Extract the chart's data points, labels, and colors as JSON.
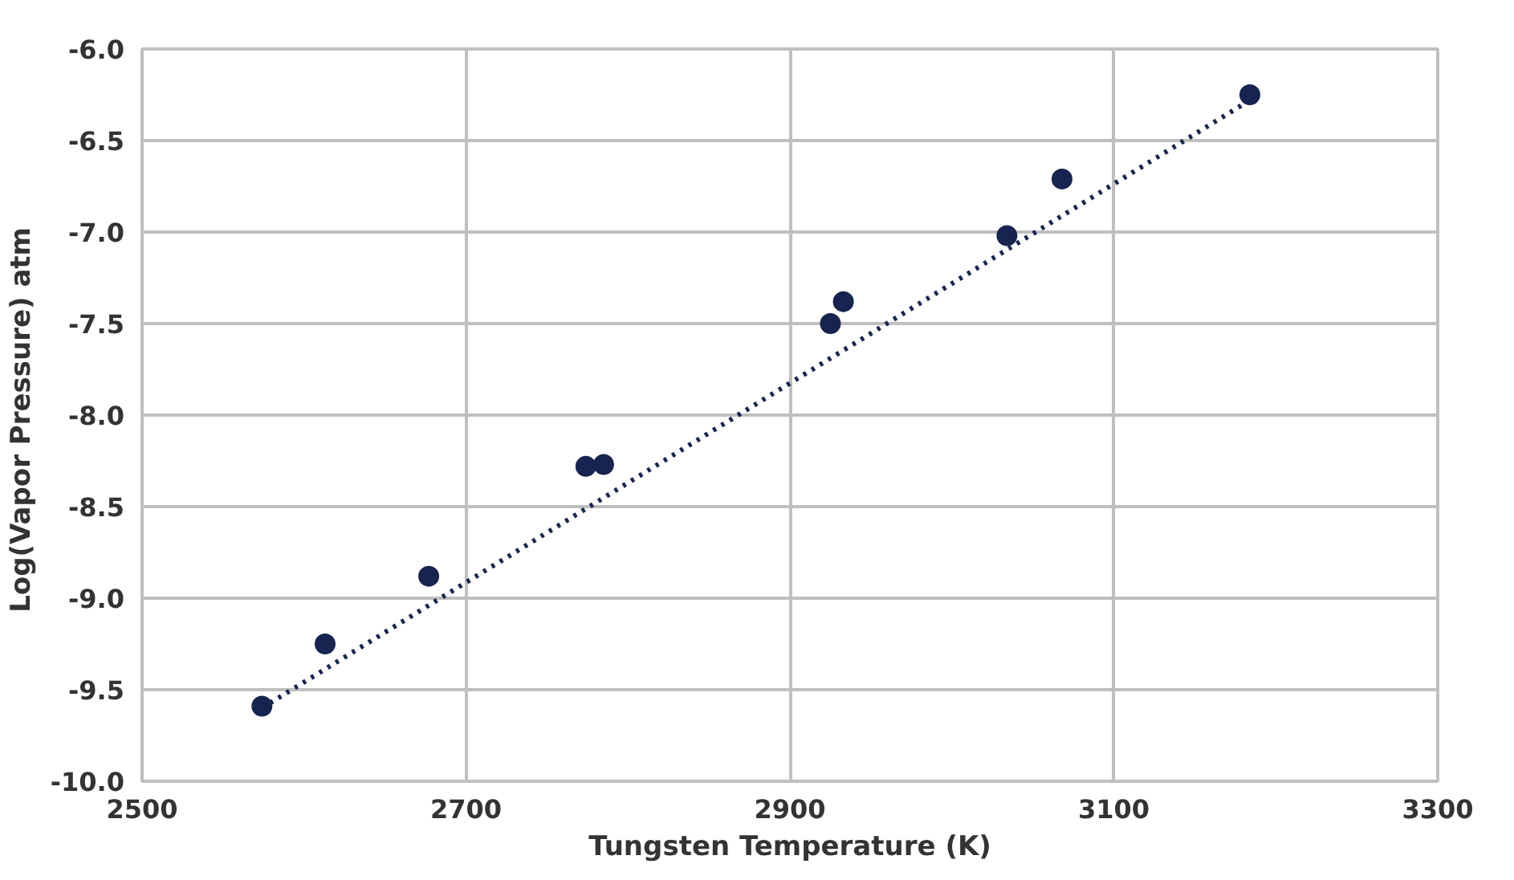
{
  "chart_data": {
    "type": "scatter",
    "xlabel": "Tungsten Temperature (K)",
    "ylabel": "Log(Vapor Pressure)  atm",
    "xlim": [
      2500,
      3300
    ],
    "ylim": [
      -10.0,
      -6.0
    ],
    "xticks": [
      2500,
      2700,
      2900,
      3100,
      3300
    ],
    "yticks": [
      {
        "value": -10.0,
        "label": "-10.0"
      },
      {
        "value": -9.5,
        "label": "-9.5"
      },
      {
        "value": -9.0,
        "label": "-9.0"
      },
      {
        "value": -8.5,
        "label": "-8.5"
      },
      {
        "value": -8.0,
        "label": "-8.0"
      },
      {
        "value": -7.5,
        "label": "-7.5"
      },
      {
        "value": -7.0,
        "label": "-7.0"
      },
      {
        "value": -6.5,
        "label": "-6.5"
      },
      {
        "value": -6.0,
        "label": "-6.0"
      }
    ],
    "grid": true,
    "series": [
      {
        "marker": "circle",
        "color": "#17244f",
        "x": [
          2574,
          2613,
          2677,
          2774,
          2785,
          2925,
          2933,
          3034,
          3068,
          3184
        ],
        "values": [
          -9.59,
          -9.25,
          -8.88,
          -8.28,
          -8.27,
          -7.5,
          -7.38,
          -7.02,
          -6.71,
          -6.25
        ]
      },
      {
        "type": "line",
        "line_style": "dotted",
        "color": "#17244f",
        "x": [
          2574,
          3184
        ],
        "values": [
          -9.6,
          -6.28
        ]
      }
    ]
  }
}
